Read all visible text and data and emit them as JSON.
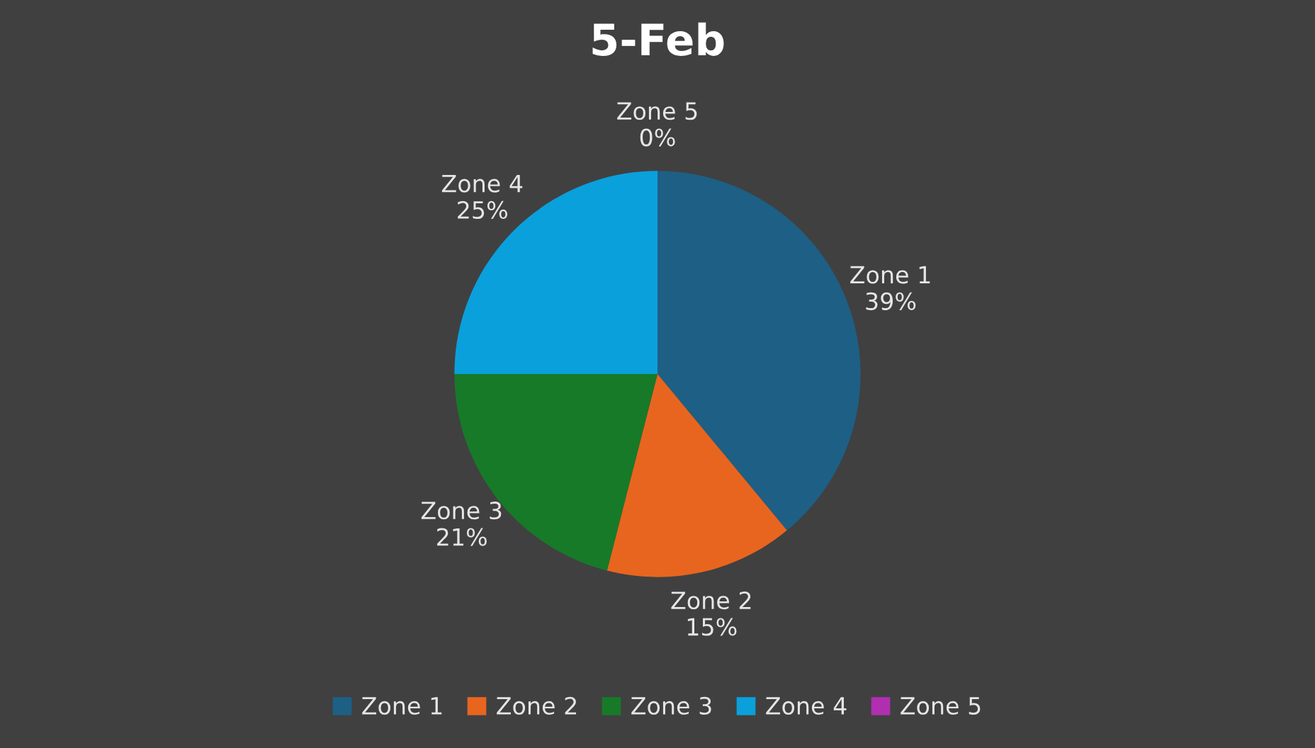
{
  "chart_data": {
    "type": "pie",
    "title": "5-Feb",
    "categories": [
      "Zone 1",
      "Zone 2",
      "Zone 3",
      "Zone 4",
      "Zone 5"
    ],
    "values": [
      39,
      15,
      21,
      25,
      0
    ],
    "value_labels": [
      "39%",
      "15%",
      "21%",
      "25%",
      "0%"
    ],
    "colors": [
      "#1e5f85",
      "#e8651f",
      "#177a28",
      "#0aa0dc",
      "#b02fb0"
    ],
    "legend": "bottom"
  }
}
